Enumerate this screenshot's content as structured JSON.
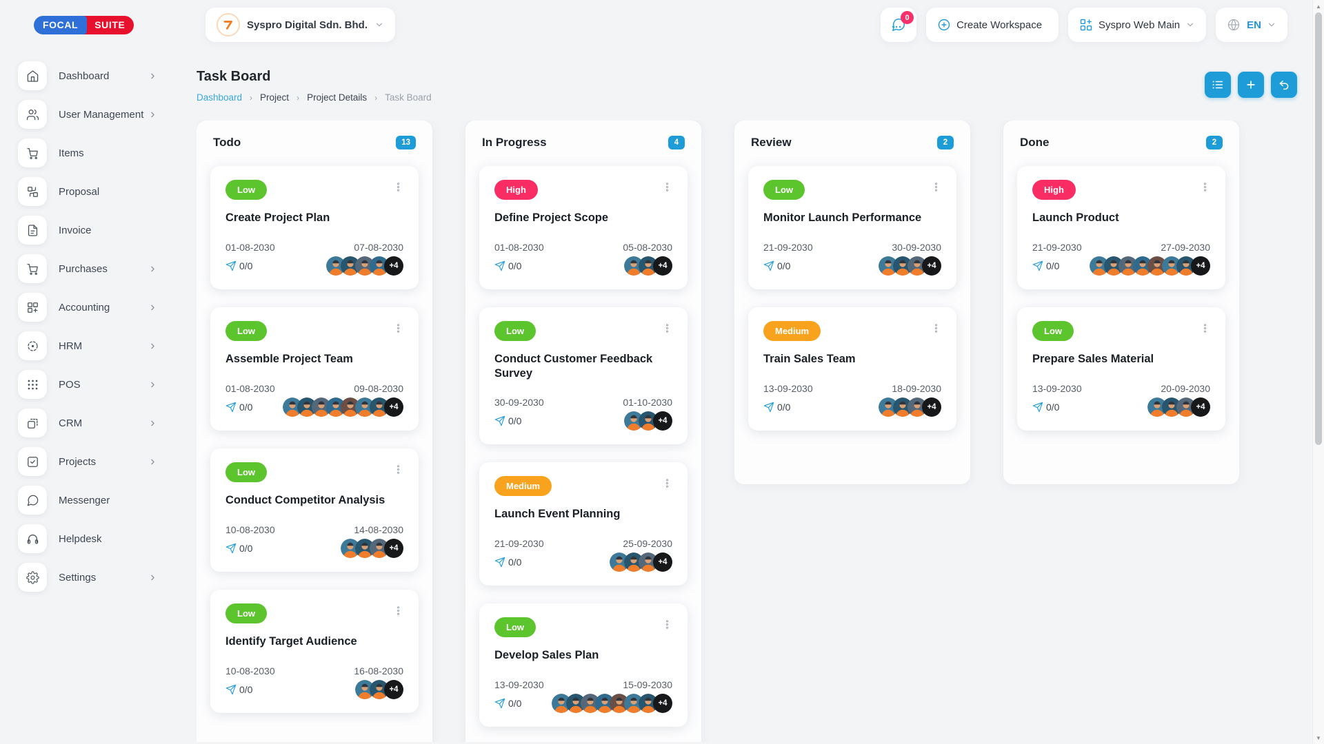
{
  "app": {
    "logo_part1": "FOCAL",
    "logo_part2": "SUITE"
  },
  "topbar": {
    "workspace_name": "Syspro Digital Sdn. Bhd.",
    "chat_badge": "0",
    "create_workspace": "Create Workspace",
    "app_switcher": "Syspro Web Main",
    "language": "EN"
  },
  "sidebar": {
    "items": [
      {
        "label": "Dashboard",
        "expandable": true
      },
      {
        "label": "User Management",
        "expandable": true
      },
      {
        "label": "Items",
        "expandable": false
      },
      {
        "label": "Proposal",
        "expandable": false
      },
      {
        "label": "Invoice",
        "expandable": false
      },
      {
        "label": "Purchases",
        "expandable": true
      },
      {
        "label": "Accounting",
        "expandable": true
      },
      {
        "label": "HRM",
        "expandable": true
      },
      {
        "label": "POS",
        "expandable": true
      },
      {
        "label": "CRM",
        "expandable": true
      },
      {
        "label": "Projects",
        "expandable": true
      },
      {
        "label": "Messenger",
        "expandable": false
      },
      {
        "label": "Helpdesk",
        "expandable": false
      },
      {
        "label": "Settings",
        "expandable": true
      }
    ]
  },
  "page": {
    "title": "Task Board",
    "breadcrumb": [
      "Dashboard",
      "Project",
      "Project Details",
      "Task Board"
    ],
    "breadcrumb_separator": "›"
  },
  "board": {
    "columns": [
      {
        "name": "Todo",
        "count": "13",
        "cards": [
          {
            "priority": "Low",
            "title": "Create Project Plan",
            "start": "01-08-2030",
            "end": "07-08-2030",
            "comments": "0/0",
            "avatars": 4,
            "extra": "+4"
          },
          {
            "priority": "Low",
            "title": "Assemble Project Team",
            "start": "01-08-2030",
            "end": "09-08-2030",
            "comments": "0/0",
            "avatars": 7,
            "extra": "+4"
          },
          {
            "priority": "Low",
            "title": "Conduct Competitor Analysis",
            "start": "10-08-2030",
            "end": "14-08-2030",
            "comments": "0/0",
            "avatars": 3,
            "extra": "+4"
          },
          {
            "priority": "Low",
            "title": "Identify Target Audience",
            "start": "10-08-2030",
            "end": "16-08-2030",
            "comments": "0/0",
            "avatars": 2,
            "extra": "+4"
          }
        ]
      },
      {
        "name": "In Progress",
        "count": "4",
        "cards": [
          {
            "priority": "High",
            "title": "Define Project Scope",
            "start": "01-08-2030",
            "end": "05-08-2030",
            "comments": "0/0",
            "avatars": 2,
            "extra": "+4"
          },
          {
            "priority": "Low",
            "title": "Conduct Customer Feedback Survey",
            "start": "30-09-2030",
            "end": "01-10-2030",
            "comments": "0/0",
            "avatars": 2,
            "extra": "+4"
          },
          {
            "priority": "Medium",
            "title": "Launch Event Planning",
            "start": "21-09-2030",
            "end": "25-09-2030",
            "comments": "0/0",
            "avatars": 3,
            "extra": "+4"
          },
          {
            "priority": "Low",
            "title": "Develop Sales Plan",
            "start": "13-09-2030",
            "end": "15-09-2030",
            "comments": "0/0",
            "avatars": 7,
            "extra": "+4"
          }
        ]
      },
      {
        "name": "Review",
        "count": "2",
        "cards": [
          {
            "priority": "Low",
            "title": "Monitor Launch Performance",
            "start": "21-09-2030",
            "end": "30-09-2030",
            "comments": "0/0",
            "avatars": 3,
            "extra": "+4"
          },
          {
            "priority": "Medium",
            "title": "Train Sales Team",
            "start": "13-09-2030",
            "end": "18-09-2030",
            "comments": "0/0",
            "avatars": 3,
            "extra": "+4"
          }
        ]
      },
      {
        "name": "Done",
        "count": "2",
        "cards": [
          {
            "priority": "High",
            "title": "Launch Product",
            "start": "21-09-2030",
            "end": "27-09-2030",
            "comments": "0/0",
            "avatars": 7,
            "extra": "+4"
          },
          {
            "priority": "Low",
            "title": "Prepare Sales Material",
            "start": "13-09-2030",
            "end": "20-09-2030",
            "comments": "0/0",
            "avatars": 3,
            "extra": "+4"
          }
        ]
      }
    ]
  },
  "icons": {
    "topbar": [
      "chat-icon",
      "plus-circle-icon",
      "apps-grid-plus-icon",
      "globe-icon",
      "chevron-down-icon"
    ],
    "head_actions": [
      "list-icon",
      "plus-icon",
      "undo-icon"
    ],
    "card": [
      "kebab-menu-icon",
      "send-icon"
    ]
  },
  "theme": {
    "accent_blue": "#1d9cd8",
    "link_blue": "#38a7de",
    "priority_colors": {
      "Low": "#5cc52e",
      "Medium": "#f9a21d",
      "High": "#f92c64"
    },
    "notification_red": "#f8316b",
    "avatar_chip_bg": "#17181a",
    "logo_blue": "#2e6fd8",
    "logo_red": "#e8112d",
    "avatar_colors": [
      "#3d7a99",
      "#27566e",
      "#55687a",
      "#2f6b8f",
      "#6b4f46"
    ]
  }
}
